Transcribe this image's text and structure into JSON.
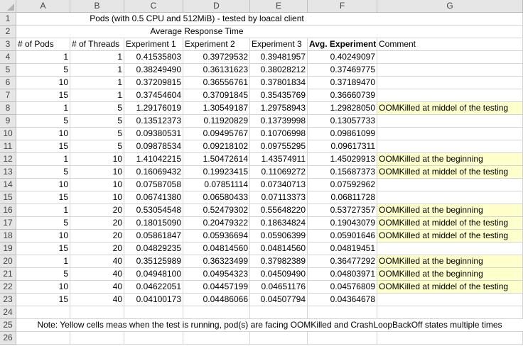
{
  "columns": [
    "A",
    "B",
    "C",
    "D",
    "E",
    "F",
    "G"
  ],
  "title": "Pods (with 0.5 CPU and 512MiB) - tested by loacal client",
  "subtitle": "Average Response Time",
  "headers": [
    "# of Pods",
    "# of Threads",
    "Experiment 1",
    "Experiment 2",
    "Experiment 3",
    "Avg. Experiment",
    "Comment"
  ],
  "rows": [
    {
      "pods": "1",
      "threads": "1",
      "e1": "0.41535803",
      "e2": "0.39729532",
      "e3": "0.39481957",
      "avg": "0.40249097",
      "comment": ""
    },
    {
      "pods": "5",
      "threads": "1",
      "e1": "0.38249490",
      "e2": "0.36131623",
      "e3": "0.38028212",
      "avg": "0.37469775",
      "comment": ""
    },
    {
      "pods": "10",
      "threads": "1",
      "e1": "0.37209815",
      "e2": "0.36556761",
      "e3": "0.37801834",
      "avg": "0.37189470",
      "comment": ""
    },
    {
      "pods": "15",
      "threads": "1",
      "e1": "0.37454604",
      "e2": "0.37091845",
      "e3": "0.35435769",
      "avg": "0.36660739",
      "comment": ""
    },
    {
      "pods": "1",
      "threads": "5",
      "e1": "1.29176019",
      "e2": "1.30549187",
      "e3": "1.29758943",
      "avg": "1.29828050",
      "comment": "OOMKilled at middel of the testing"
    },
    {
      "pods": "5",
      "threads": "5",
      "e1": "0.13512373",
      "e2": "0.11920829",
      "e3": "0.13739998",
      "avg": "0.13057733",
      "comment": ""
    },
    {
      "pods": "10",
      "threads": "5",
      "e1": "0.09380531",
      "e2": "0.09495767",
      "e3": "0.10706998",
      "avg": "0.09861099",
      "comment": ""
    },
    {
      "pods": "15",
      "threads": "5",
      "e1": "0.09878534",
      "e2": "0.09218102",
      "e3": "0.09755295",
      "avg": "0.09617311",
      "comment": ""
    },
    {
      "pods": "1",
      "threads": "10",
      "e1": "1.41042215",
      "e2": "1.50472614",
      "e3": "1.43574911",
      "avg": "1.45029913",
      "comment": "OOMKilled at the beginning"
    },
    {
      "pods": "5",
      "threads": "10",
      "e1": "0.16069432",
      "e2": "0.19923415",
      "e3": "0.11069272",
      "avg": "0.15687373",
      "comment": "OOMKilled at middel of the testing"
    },
    {
      "pods": "10",
      "threads": "10",
      "e1": "0.07587058",
      "e2": "0.07851114",
      "e3": "0.07340713",
      "avg": "0.07592962",
      "comment": ""
    },
    {
      "pods": "15",
      "threads": "10",
      "e1": "0.06741380",
      "e2": "0.06580433",
      "e3": "0.07113373",
      "avg": "0.06811728",
      "comment": ""
    },
    {
      "pods": "1",
      "threads": "20",
      "e1": "0.53054548",
      "e2": "0.52479302",
      "e3": "0.55648220",
      "avg": "0.53727357",
      "comment": "OOMKilled at the beginning"
    },
    {
      "pods": "5",
      "threads": "20",
      "e1": "0.18015090",
      "e2": "0.20479322",
      "e3": "0.18634824",
      "avg": "0.19043079",
      "comment": "OOMKilled at middel of the testing"
    },
    {
      "pods": "10",
      "threads": "20",
      "e1": "0.05861847",
      "e2": "0.05936694",
      "e3": "0.05906399",
      "avg": "0.05901646",
      "comment": "OOMKilled at middel of the testing"
    },
    {
      "pods": "15",
      "threads": "20",
      "e1": "0.04829235",
      "e2": "0.04814560",
      "e3": "0.04814560",
      "avg": "0.04819451",
      "comment": ""
    },
    {
      "pods": "1",
      "threads": "40",
      "e1": "0.35125989",
      "e2": "0.36323499",
      "e3": "0.37982389",
      "avg": "0.36477292",
      "comment": "OOMKilled at the beginning"
    },
    {
      "pods": "5",
      "threads": "40",
      "e1": "0.04948100",
      "e2": "0.04954323",
      "e3": "0.04509490",
      "avg": "0.04803971",
      "comment": "OOMKilled at the beginning"
    },
    {
      "pods": "10",
      "threads": "40",
      "e1": "0.04622051",
      "e2": "0.04457199",
      "e3": "0.04651176",
      "avg": "0.04576809",
      "comment": "OOMKilled at middel of the testing"
    },
    {
      "pods": "15",
      "threads": "40",
      "e1": "0.04100173",
      "e2": "0.04486066",
      "e3": "0.04507794",
      "avg": "0.04364678",
      "comment": ""
    }
  ],
  "note": "Note: Yellow cells meas when the test is running, pod(s) are facing OOMKilled and CrashLoopBackOff states multiple times",
  "colors": {
    "highlight": "#ffffcc",
    "header_bg": "#e6e6e6",
    "grid": "#d4d4d4"
  }
}
